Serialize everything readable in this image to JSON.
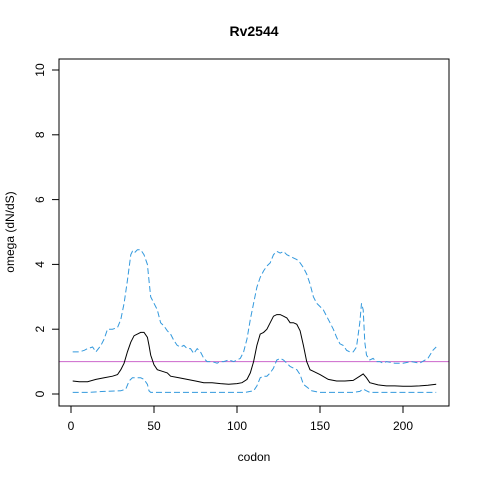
{
  "chart_data": {
    "type": "line",
    "title": "Rv2544",
    "xlabel": "codon",
    "ylabel": "omega (dN/dS)",
    "xlim": [
      0,
      220
    ],
    "ylim": [
      0,
      10
    ],
    "x_ticks": [
      0,
      50,
      100,
      150,
      200
    ],
    "y_ticks": [
      0,
      2,
      4,
      6,
      8,
      10
    ],
    "reference_line": {
      "y": 1,
      "color": "#cc66cc"
    },
    "series": [
      {
        "role": "upper",
        "color": "#3399dd",
        "dash": true,
        "x": [
          1,
          5,
          8,
          10,
          13,
          15,
          18,
          20,
          22,
          25,
          28,
          30,
          32,
          34,
          36,
          37,
          38,
          40,
          42,
          44,
          46,
          47,
          48,
          50,
          52,
          54,
          56,
          58,
          60,
          62,
          64,
          66,
          68,
          70,
          72,
          74,
          76,
          78,
          80,
          82,
          85,
          88,
          90,
          92,
          95,
          98,
          100,
          102,
          104,
          106,
          108,
          110,
          112,
          114,
          116,
          118,
          120,
          122,
          124,
          126,
          128,
          130,
          132,
          134,
          136,
          138,
          140,
          142,
          144,
          146,
          148,
          150,
          152,
          154,
          156,
          158,
          160,
          162,
          164,
          166,
          168,
          170,
          172,
          174,
          175,
          176,
          177,
          178,
          180,
          182,
          184,
          186,
          188,
          190,
          195,
          200,
          205,
          210,
          215,
          218,
          220
        ],
        "values": [
          1.3,
          1.3,
          1.35,
          1.4,
          1.45,
          1.3,
          1.5,
          1.7,
          2.0,
          2.0,
          2.05,
          2.3,
          2.8,
          3.5,
          4.3,
          4.4,
          4.35,
          4.45,
          4.45,
          4.3,
          4.0,
          3.5,
          3.0,
          2.8,
          2.6,
          2.2,
          2.1,
          1.95,
          1.85,
          1.65,
          1.5,
          1.45,
          1.5,
          1.4,
          1.4,
          1.25,
          1.4,
          1.3,
          1.1,
          1.0,
          1.0,
          0.95,
          1.0,
          1.0,
          1.05,
          1.0,
          1.05,
          1.1,
          1.3,
          1.7,
          2.3,
          2.8,
          3.3,
          3.6,
          3.8,
          3.95,
          4.05,
          4.3,
          4.4,
          4.35,
          4.4,
          4.3,
          4.25,
          4.2,
          4.15,
          4.05,
          3.9,
          3.7,
          3.4,
          3.0,
          2.8,
          2.7,
          2.6,
          2.4,
          2.2,
          2.0,
          1.75,
          1.55,
          1.5,
          1.35,
          1.3,
          1.3,
          1.45,
          2.2,
          2.8,
          2.6,
          1.6,
          1.2,
          1.05,
          1.1,
          1.0,
          1.0,
          0.95,
          1.0,
          0.95,
          0.95,
          1.0,
          0.95,
          1.1,
          1.35,
          1.45
        ]
      },
      {
        "role": "estimate",
        "color": "#000000",
        "dash": false,
        "x": [
          1,
          5,
          10,
          15,
          20,
          25,
          28,
          30,
          32,
          34,
          36,
          38,
          40,
          42,
          44,
          46,
          47,
          48,
          50,
          52,
          55,
          58,
          60,
          65,
          70,
          75,
          80,
          85,
          90,
          95,
          100,
          103,
          106,
          108,
          110,
          112,
          114,
          116,
          118,
          120,
          122,
          124,
          126,
          128,
          130,
          132,
          134,
          136,
          138,
          140,
          142,
          144,
          146,
          148,
          150,
          155,
          160,
          165,
          170,
          174,
          176,
          178,
          180,
          185,
          190,
          195,
          200,
          205,
          210,
          215,
          220
        ],
        "values": [
          0.4,
          0.38,
          0.38,
          0.45,
          0.5,
          0.55,
          0.6,
          0.75,
          0.95,
          1.3,
          1.6,
          1.8,
          1.85,
          1.9,
          1.9,
          1.75,
          1.5,
          1.2,
          0.9,
          0.75,
          0.7,
          0.65,
          0.55,
          0.5,
          0.45,
          0.4,
          0.35,
          0.35,
          0.32,
          0.3,
          0.32,
          0.35,
          0.45,
          0.65,
          1.0,
          1.5,
          1.85,
          1.9,
          2.0,
          2.2,
          2.4,
          2.45,
          2.45,
          2.4,
          2.35,
          2.2,
          2.2,
          2.15,
          1.95,
          1.5,
          1.0,
          0.75,
          0.7,
          0.65,
          0.6,
          0.45,
          0.4,
          0.4,
          0.42,
          0.55,
          0.62,
          0.5,
          0.35,
          0.28,
          0.25,
          0.25,
          0.24,
          0.24,
          0.25,
          0.27,
          0.3
        ]
      },
      {
        "role": "lower",
        "color": "#3399dd",
        "dash": true,
        "x": [
          1,
          10,
          20,
          30,
          33,
          35,
          37,
          39,
          42,
          44,
          46,
          47,
          48,
          50,
          55,
          60,
          70,
          80,
          90,
          100,
          105,
          108,
          110,
          112,
          114,
          116,
          118,
          120,
          122,
          124,
          126,
          128,
          130,
          132,
          134,
          136,
          138,
          140,
          145,
          150,
          160,
          170,
          174,
          176,
          178,
          180,
          190,
          200,
          210,
          220
        ],
        "values": [
          0.05,
          0.05,
          0.08,
          0.1,
          0.15,
          0.4,
          0.5,
          0.5,
          0.5,
          0.45,
          0.3,
          0.1,
          0.05,
          0.05,
          0.05,
          0.05,
          0.05,
          0.05,
          0.05,
          0.05,
          0.05,
          0.08,
          0.1,
          0.25,
          0.5,
          0.55,
          0.55,
          0.65,
          0.8,
          1.05,
          1.1,
          1.05,
          0.95,
          0.85,
          0.8,
          0.75,
          0.6,
          0.3,
          0.1,
          0.05,
          0.05,
          0.05,
          0.08,
          0.15,
          0.1,
          0.05,
          0.05,
          0.05,
          0.05,
          0.05
        ]
      }
    ]
  }
}
